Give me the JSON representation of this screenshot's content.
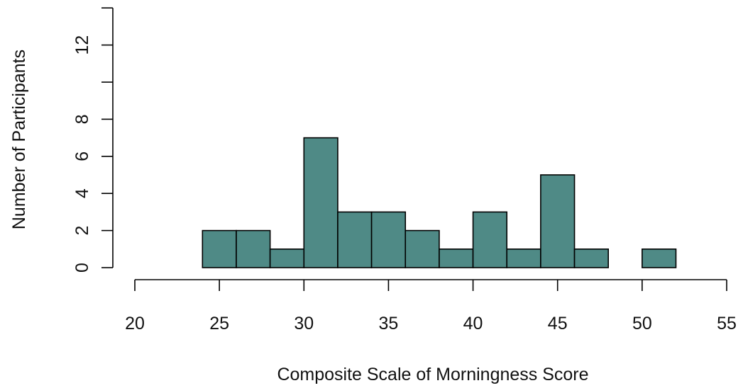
{
  "chart_data": {
    "type": "bar",
    "subtype": "histogram",
    "xlabel": "Composite Scale of Morningness Score",
    "ylabel": "Number of Participants",
    "bin_width": 2,
    "bins": [
      {
        "start": 24,
        "end": 26,
        "count": 2
      },
      {
        "start": 26,
        "end": 28,
        "count": 2
      },
      {
        "start": 28,
        "end": 30,
        "count": 1
      },
      {
        "start": 30,
        "end": 32,
        "count": 7
      },
      {
        "start": 32,
        "end": 34,
        "count": 3
      },
      {
        "start": 34,
        "end": 36,
        "count": 3
      },
      {
        "start": 36,
        "end": 38,
        "count": 2
      },
      {
        "start": 38,
        "end": 40,
        "count": 1
      },
      {
        "start": 40,
        "end": 42,
        "count": 3
      },
      {
        "start": 42,
        "end": 44,
        "count": 1
      },
      {
        "start": 44,
        "end": 46,
        "count": 5
      },
      {
        "start": 46,
        "end": 48,
        "count": 1
      },
      {
        "start": 48,
        "end": 50,
        "count": 0
      },
      {
        "start": 50,
        "end": 52,
        "count": 1
      }
    ],
    "xlim": [
      20,
      55
    ],
    "ylim": [
      0,
      14
    ],
    "x_ticks": [
      "20",
      "25",
      "30",
      "35",
      "40",
      "45",
      "50",
      "55"
    ],
    "y_ticks": [
      0,
      2,
      4,
      6,
      8,
      10,
      12,
      14
    ],
    "y_tick_labels": [
      "0",
      "2",
      "4",
      "6",
      "8",
      "",
      "12",
      ""
    ],
    "bar_color": "#4f8a86",
    "grid": false,
    "legend": "none"
  }
}
